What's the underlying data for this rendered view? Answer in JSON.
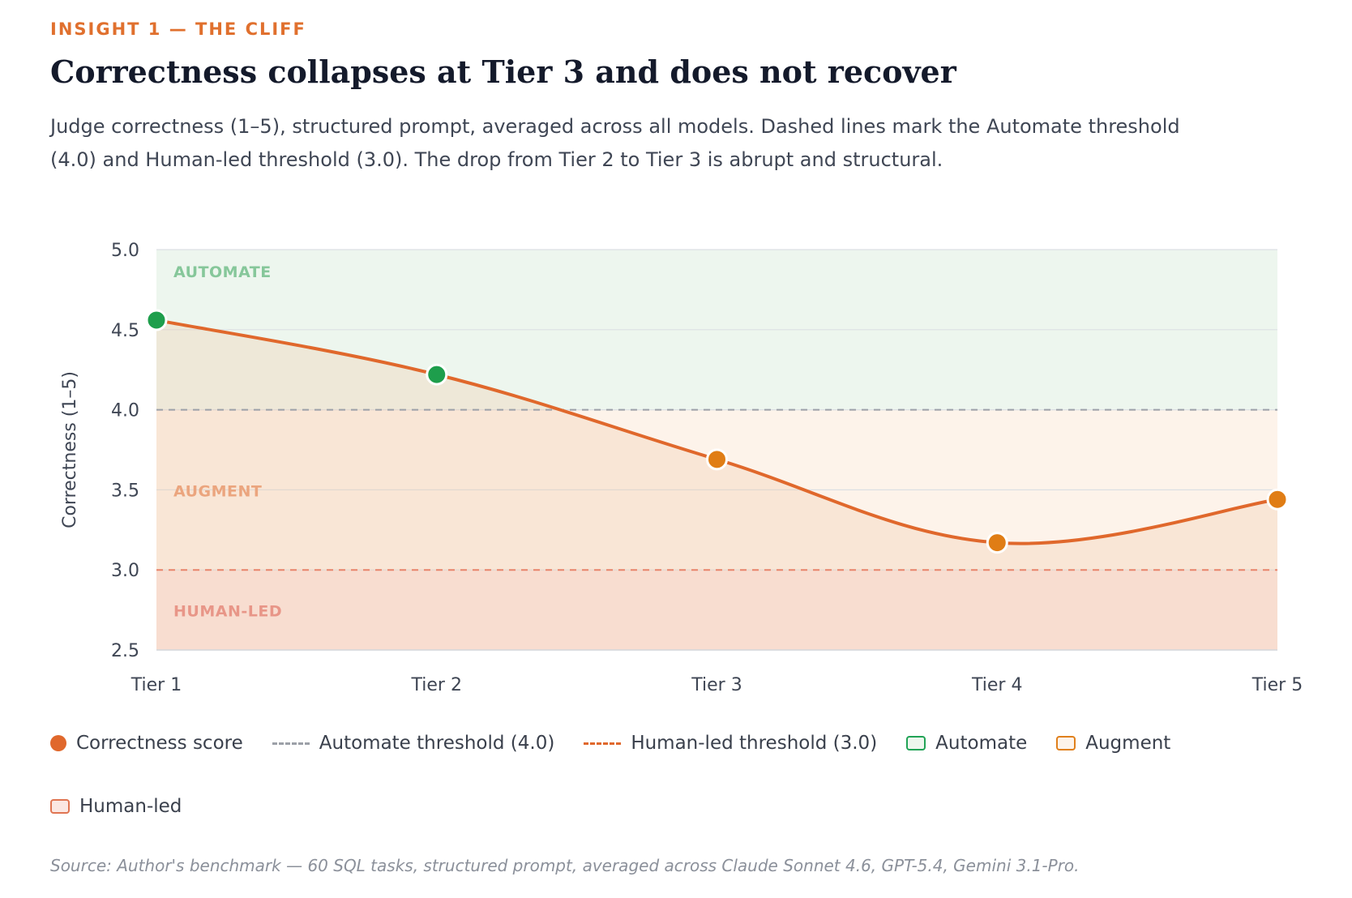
{
  "header": {
    "eyebrow": "INSIGHT 1 — THE CLIFF",
    "title": "Correctness collapses at Tier 3 and does not recover",
    "subtitle": "Judge correctness (1–5), structured prompt, averaged across all models. Dashed lines mark the Automate threshold (4.0) and Human-led threshold (3.0). The drop from Tier 2 to Tier 3 is abrupt and structural."
  },
  "chart_data": {
    "type": "line",
    "categories": [
      "Tier 1",
      "Tier 2",
      "Tier 3",
      "Tier 4",
      "Tier 5"
    ],
    "series": [
      {
        "name": "Correctness score",
        "values": [
          4.56,
          4.22,
          3.69,
          3.17,
          3.44
        ]
      }
    ],
    "ylabel": "Correctness (1–5)",
    "xlabel": "",
    "ylim": [
      2.5,
      5.0
    ],
    "yticks": [
      2.5,
      3.0,
      3.5,
      4.0,
      4.5,
      5.0
    ],
    "grid": true,
    "legend_position": "bottom",
    "thresholds": [
      {
        "name": "Automate threshold (4.0)",
        "value": 4.0,
        "color": "#9ca0a8"
      },
      {
        "name": "Human-led threshold (3.0)",
        "value": 3.0,
        "color": "#e8846a"
      }
    ],
    "bands": [
      {
        "name": "Automate",
        "label": "AUTOMATE",
        "from": 4.0,
        "to": 5.0,
        "fill": "#edf6ee",
        "label_color": "#86c79a",
        "border": "#21a356"
      },
      {
        "name": "Augment",
        "label": "AUGMENT",
        "from": 3.0,
        "to": 4.0,
        "fill": "#fdf3ea",
        "label_color": "#eba57e",
        "border": "#e0801c"
      },
      {
        "name": "Human-led",
        "label": "HUMAN-LED",
        "from": 2.5,
        "to": 3.0,
        "fill": "#fbe7e2",
        "label_color": "#e89688",
        "border": "#e07552"
      }
    ],
    "colors": {
      "line": "#e0682c",
      "point_above": "#1e9e4c",
      "point_below": "#e07d15",
      "area_fill": "#f2c7a3"
    }
  },
  "source": "Source: Author's benchmark — 60 SQL tasks, structured prompt, averaged across Claude Sonnet 4.6, GPT-5.4, Gemini 3.1-Pro."
}
